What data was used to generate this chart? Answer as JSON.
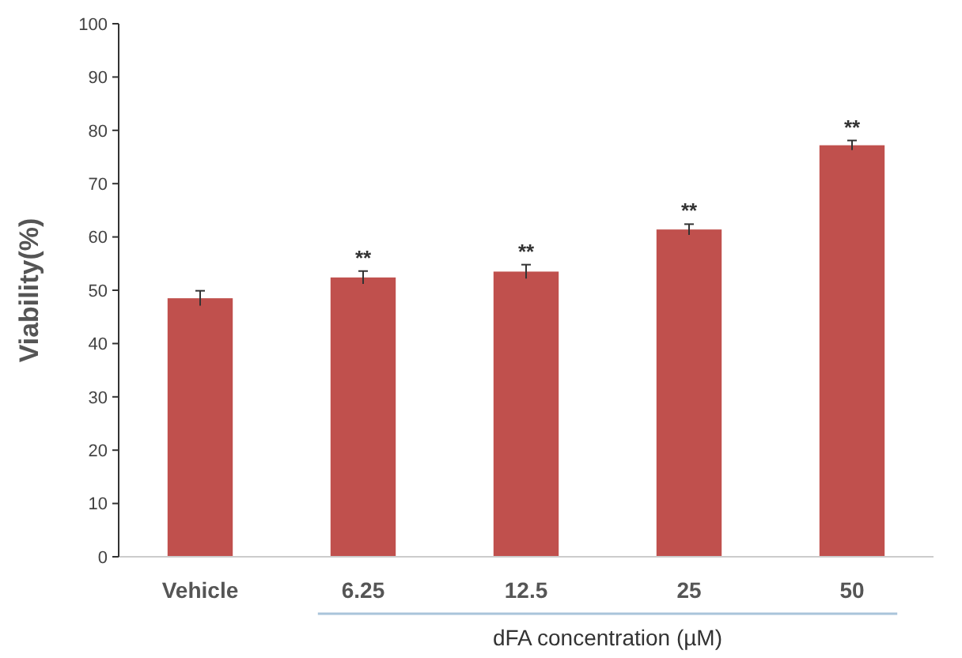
{
  "chart_data": {
    "type": "bar",
    "categories": [
      "Vehicle",
      "6.25",
      "12.5",
      "25",
      "50"
    ],
    "values": [
      48.5,
      52.4,
      53.5,
      61.4,
      77.2
    ],
    "errors": [
      1.4,
      1.2,
      1.3,
      1.0,
      0.9
    ],
    "color": "#c0504d",
    "xlabel": "dFA concentration (µM)",
    "ylabel": "Viability(%)",
    "ylim": [
      0,
      100
    ],
    "yticks": [
      0,
      10,
      20,
      30,
      40,
      50,
      60,
      70,
      80,
      90,
      100
    ],
    "grid": false,
    "annotations": [
      {
        "text": "**",
        "x": "6.25",
        "y": 53.6
      },
      {
        "text": "**",
        "x": "12.5",
        "y": 54.8
      },
      {
        "text": "**",
        "x": "25",
        "y": 62.4
      },
      {
        "text": "**",
        "x": "50",
        "y": 78.1
      }
    ]
  }
}
